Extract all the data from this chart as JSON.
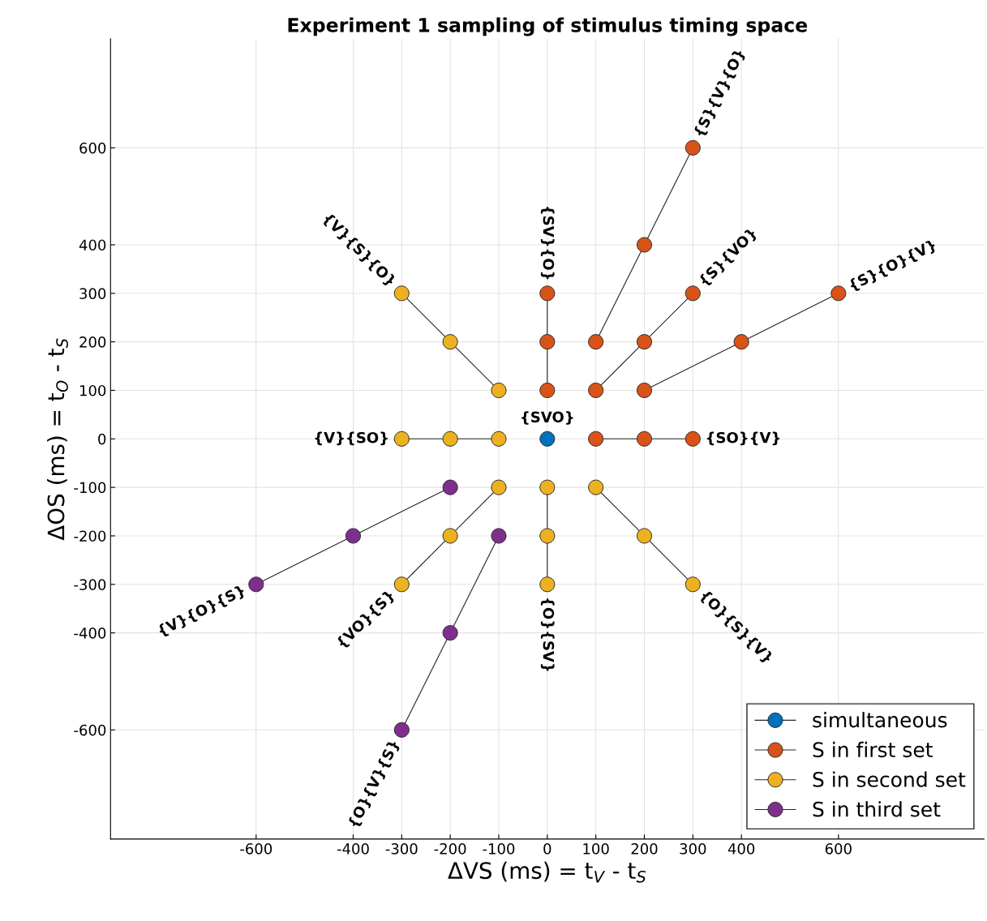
{
  "chart_data": {
    "type": "line",
    "title": "Experiment 1 sampling of stimulus timing space",
    "xlabel": "ΔVS (ms) = t$_{V}$ - t$_{S}$",
    "ylabel": "ΔOS (ms) = t$_{O}$ - t$_{S}$",
    "xlim": [
      -900,
      900
    ],
    "ylim": [
      -825,
      825
    ],
    "xticks": [
      -600,
      -400,
      -300,
      -200,
      -100,
      0,
      100,
      200,
      300,
      400,
      600
    ],
    "yticks": [
      -600,
      -400,
      -300,
      -200,
      -100,
      0,
      100,
      200,
      300,
      400,
      600
    ],
    "grid": true,
    "legend": "bottom right",
    "marker": "circle",
    "line_style": "solid",
    "series": [
      {
        "name": "simultaneous",
        "color": "#0072bd",
        "x": [
          0
        ],
        "values": [
          0
        ]
      },
      {
        "name": "S in first set",
        "color": "#d95319",
        "x": [
          0,
          0,
          0,
          null,
          100,
          200,
          300,
          null,
          100,
          200,
          300,
          null,
          200,
          400,
          600,
          null,
          100,
          200,
          300
        ],
        "values": [
          100,
          200,
          300,
          null,
          100,
          200,
          300,
          null,
          200,
          400,
          600,
          null,
          100,
          200,
          300,
          null,
          0,
          0,
          0
        ]
      },
      {
        "name": "S in second set",
        "color": "#edb120",
        "x": [
          -100,
          -200,
          -300,
          null,
          -100,
          -200,
          -300,
          null,
          -100,
          -200,
          -300,
          null,
          0,
          0,
          0,
          null,
          100,
          200,
          300
        ],
        "values": [
          100,
          200,
          300,
          null,
          0,
          0,
          0,
          null,
          -100,
          -200,
          -300,
          null,
          -100,
          -200,
          -300,
          null,
          -100,
          -200,
          -300
        ]
      },
      {
        "name": "S in third set",
        "color": "#7e2f8e",
        "x": [
          -200,
          -400,
          -600,
          null,
          -100,
          -200,
          -300
        ],
        "values": [
          -100,
          -200,
          -300,
          null,
          -200,
          -400,
          -600
        ]
      }
    ],
    "annotations": [
      {
        "text": "{SVO}",
        "x": 0,
        "y": 0
      },
      {
        "text": "{S}{V}{O}",
        "x": 300,
        "y": 600
      },
      {
        "text": "{SV}{O}",
        "x": 0,
        "y": 300
      },
      {
        "text": "{S}{VO}",
        "x": 300,
        "y": 300
      },
      {
        "text": "{S}{O}{V}",
        "x": 600,
        "y": 300
      },
      {
        "text": "{SO}{V}",
        "x": 300,
        "y": 0
      },
      {
        "text": "{V}{S}{O}",
        "x": -300,
        "y": 300
      },
      {
        "text": "{V}{SO}",
        "x": -300,
        "y": 0
      },
      {
        "text": "{VO}{S}",
        "x": -300,
        "y": -300
      },
      {
        "text": "{V}{O}{S}",
        "x": -600,
        "y": -300
      },
      {
        "text": "{O}{V}{S}",
        "x": -300,
        "y": -600
      },
      {
        "text": "{O}{SV}",
        "x": 0,
        "y": -300
      },
      {
        "text": "{O}{S}{V}",
        "x": 300,
        "y": -300
      }
    ]
  }
}
